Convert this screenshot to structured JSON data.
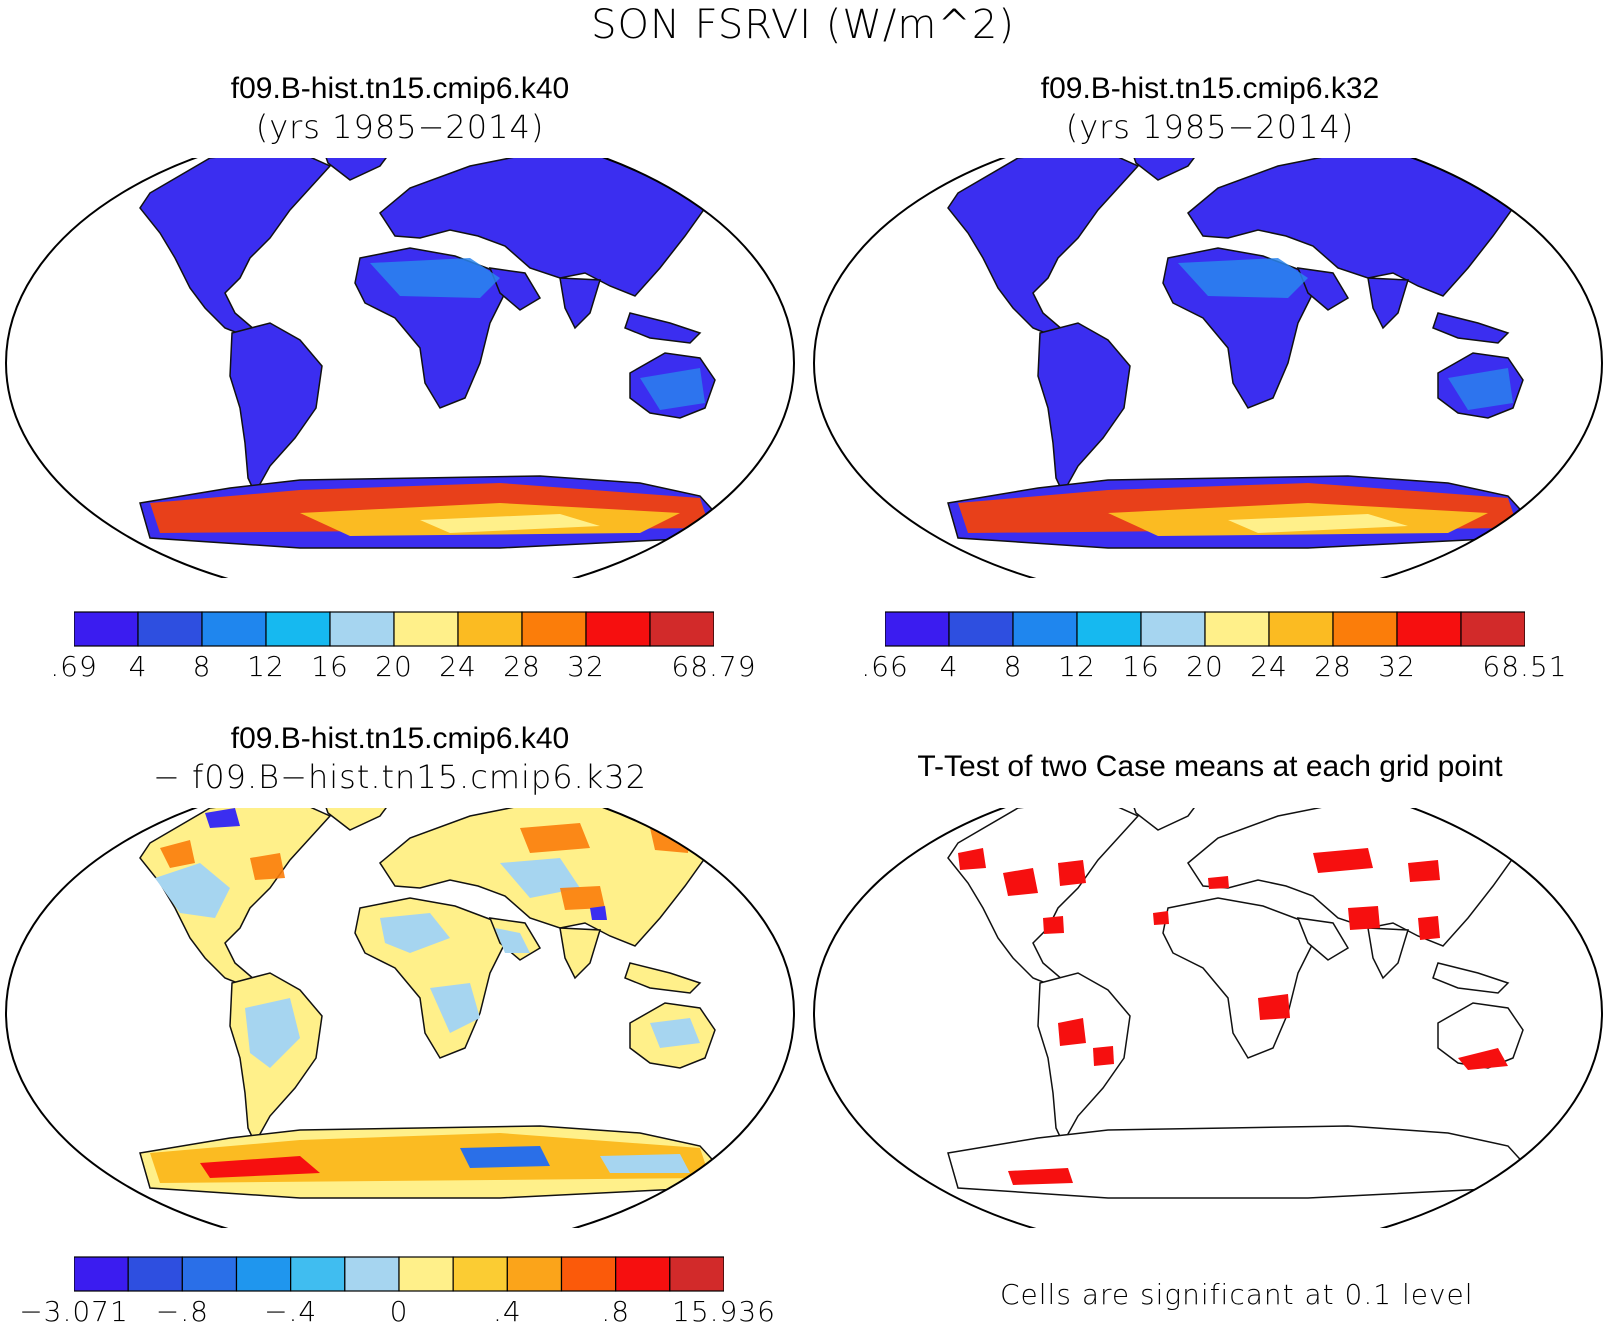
{
  "title": "SON FSRVI (W/m^2)",
  "panels": [
    {
      "id": "tl",
      "title_line1": "f09.B-hist.tn15.cmip6.k40",
      "title_line2": "(yrs 1985−2014)"
    },
    {
      "id": "tr",
      "title_line1": "f09.B-hist.tn15.cmip6.k32",
      "title_line2": "(yrs 1985−2014)"
    },
    {
      "id": "bl",
      "title_line1": "f09.B-hist.tn15.cmip6.k40",
      "title_line2": "− f09.B−hist.tn15.cmip6.k32"
    },
    {
      "id": "br",
      "title_line1": "T-Test of two Case means at each grid point",
      "title_line2": ""
    }
  ],
  "colorbars": [
    {
      "id": "cb1",
      "colors": [
        "#3b1cf0",
        "#2e4fe0",
        "#1f86ee",
        "#16b9f0",
        "#a6d5f0",
        "#fff08a",
        "#fbbb22",
        "#fb7d0a",
        "#f60f0f",
        "#d22a2a"
      ],
      "labels": [
        ".69",
        "4",
        "8",
        "12",
        "16",
        "20",
        "24",
        "28",
        "32",
        "68.79"
      ]
    },
    {
      "id": "cb2",
      "colors": [
        "#3b1cf0",
        "#2e4fe0",
        "#1f86ee",
        "#16b9f0",
        "#a6d5f0",
        "#fff08a",
        "#fbbb22",
        "#fb7d0a",
        "#f60f0f",
        "#d22a2a"
      ],
      "labels": [
        ".66",
        "4",
        "8",
        "12",
        "16",
        "20",
        "24",
        "28",
        "32",
        "68.51"
      ]
    },
    {
      "id": "cb3",
      "colors": [
        "#3b1cf0",
        "#2e4fe0",
        "#2a6fe8",
        "#1f96ee",
        "#40bdf0",
        "#a6d5f0",
        "#fff08a",
        "#fbcc33",
        "#fba41a",
        "#fb5a0a",
        "#f60f0f",
        "#d22a2a"
      ],
      "labels": [
        "−3.071",
        "−.8",
        "−.4",
        "0",
        ".4",
        ".8",
        "15.936"
      ]
    }
  ],
  "significance_note": "Cells are significant at 0.1 level",
  "colors": {
    "land_main": "#3b2ef0",
    "antarctic": "#e8401a",
    "diff_land": "#fff08a",
    "signif": "#f60f0f"
  }
}
